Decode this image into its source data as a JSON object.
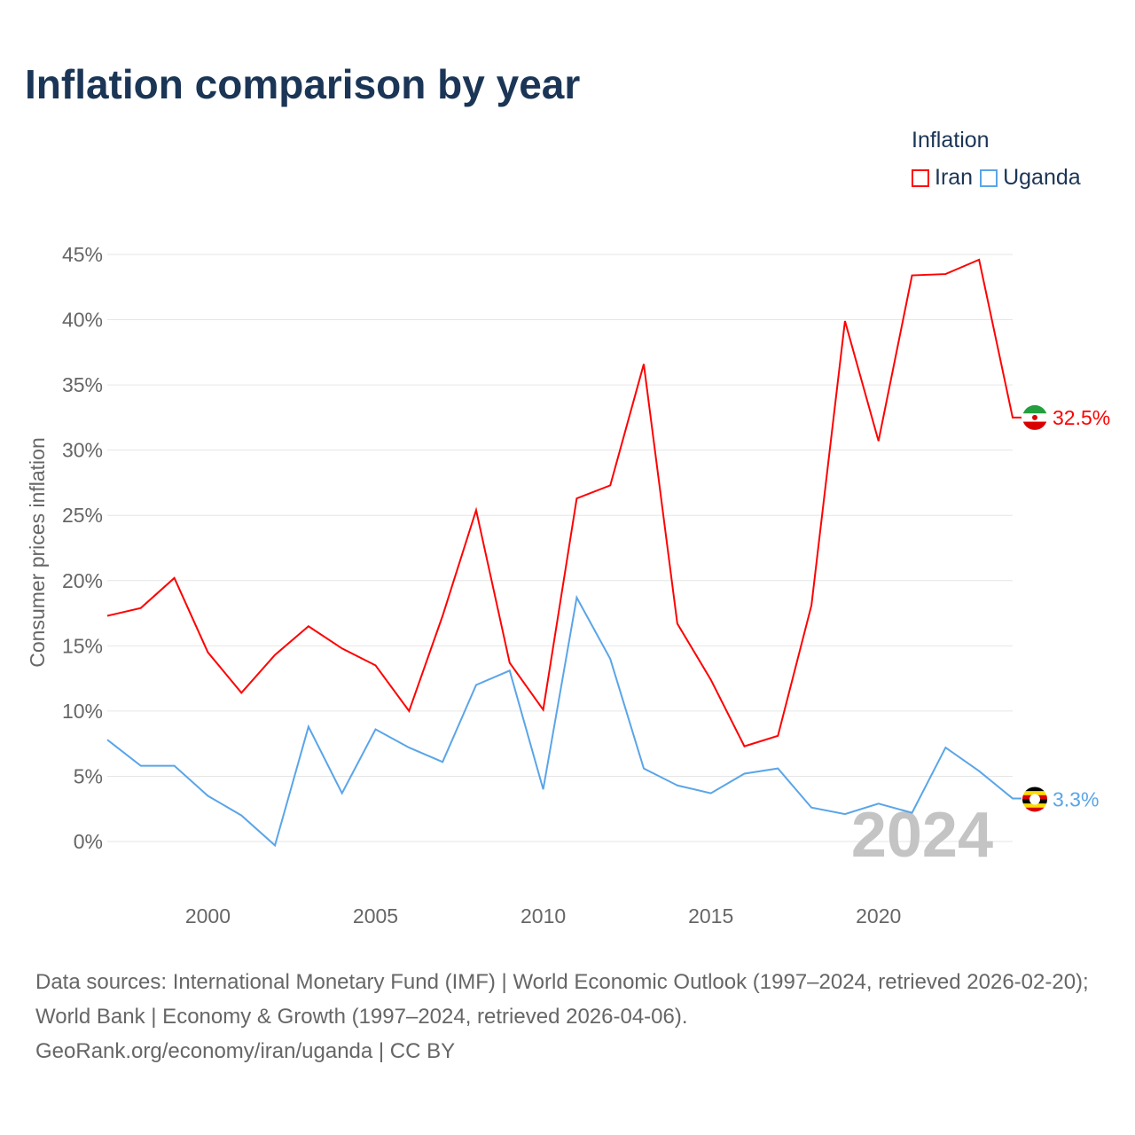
{
  "title": "Inflation comparison by year",
  "legend": {
    "title": "Inflation",
    "items": [
      {
        "label": "Iran",
        "color": "#ff0000"
      },
      {
        "label": "Uganda",
        "color": "#5aa5e8"
      }
    ]
  },
  "chart_data": {
    "type": "line",
    "title": "Inflation comparison by year",
    "xlabel": "",
    "ylabel": "Consumer prices inflation",
    "x": [
      1997,
      1998,
      1999,
      2000,
      2001,
      2002,
      2003,
      2004,
      2005,
      2006,
      2007,
      2008,
      2009,
      2010,
      2011,
      2012,
      2013,
      2014,
      2015,
      2016,
      2017,
      2018,
      2019,
      2020,
      2021,
      2022,
      2023,
      2024
    ],
    "series": [
      {
        "name": "Iran",
        "color": "#ff0000",
        "end_label": "32.5%",
        "values": [
          17.3,
          17.9,
          20.2,
          14.5,
          11.4,
          14.3,
          16.5,
          14.8,
          13.5,
          10.0,
          17.3,
          25.4,
          13.7,
          10.1,
          26.3,
          27.3,
          36.6,
          16.7,
          12.4,
          7.3,
          8.1,
          18.1,
          39.9,
          30.7,
          43.4,
          43.5,
          44.6,
          32.5
        ]
      },
      {
        "name": "Uganda",
        "color": "#5aa5e8",
        "end_label": "3.3%",
        "values": [
          7.8,
          5.8,
          5.8,
          3.5,
          2.0,
          -0.3,
          8.8,
          3.7,
          8.6,
          7.2,
          6.1,
          12.0,
          13.1,
          4.0,
          18.7,
          14.0,
          5.6,
          4.3,
          3.7,
          5.2,
          5.6,
          2.6,
          2.1,
          2.9,
          2.2,
          7.2,
          5.4,
          3.3
        ]
      }
    ],
    "ylim": [
      0,
      45
    ],
    "xlim": [
      1997,
      2024
    ],
    "yticks": [
      "0%",
      "5%",
      "10%",
      "15%",
      "20%",
      "25%",
      "30%",
      "35%",
      "40%",
      "45%"
    ],
    "ytick_values": [
      0,
      5,
      10,
      15,
      20,
      25,
      30,
      35,
      40,
      45
    ],
    "xticks": [
      "2000",
      "2005",
      "2010",
      "2015",
      "2020"
    ],
    "xtick_values": [
      2000,
      2005,
      2010,
      2015,
      2020
    ],
    "year_watermark": "2024",
    "grid": true,
    "legend_position": "top-right"
  },
  "source": {
    "line1": "Data sources: International Monetary Fund (IMF) | World Economic Outlook (1997–2024, retrieved 2026-02-20); World Bank | Economy & Growth (1997–2024, retrieved 2026-04-06).",
    "line2": "GeoRank.org/economy/iran/uganda | CC BY"
  }
}
